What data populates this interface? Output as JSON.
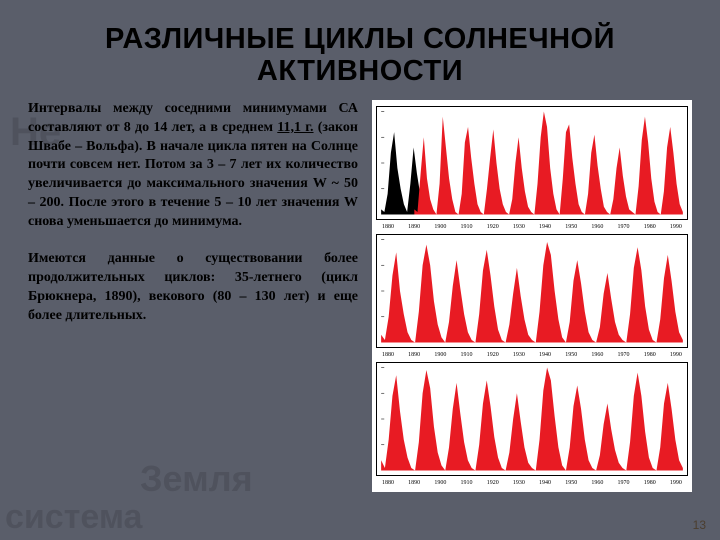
{
  "title": "РАЗЛИЧНЫЕ ЦИКЛЫ СОЛНЕЧНОЙ АКТИВНОСТИ",
  "para1_a": "Интервалы между соседними минимумами СА составляют от 8 до 14 лет, а в среднем ",
  "para1_u": "11,1 г.",
  "para1_b": " (закон Швабе – Вольфа). В начале цикла пятен на Солнце почти совсем нет. Потом за 3 – 7 лет их количество увеличивается до максимального значения W ~ 50 – 200. После этого в течение 5 – 10 лет значения W снова уменьшается до минимума.",
  "para2": "Имеются данные о существовании более продолжительных циклов: 35-летнего (цикл Брюкнера, 1890), векового (80 – 130 лет) и еще более длительных.",
  "page_num": "13",
  "bg_words": {
    "a": "Не",
    "b": "Земля",
    "c": "система"
  },
  "chart": {
    "background_color": "#ffffff",
    "axis_color": "#000000",
    "fill_red": "#e81b23",
    "fill_black": "#000000",
    "x_labels": [
      "1880",
      "1890",
      "1900",
      "1910",
      "1920",
      "1930",
      "1940",
      "1950",
      "1960",
      "1970",
      "1980",
      "1990"
    ],
    "ylim": [
      0,
      200
    ],
    "panels": [
      {
        "segments": [
          {
            "color": "black",
            "base": [
              0,
              0.14
            ],
            "values": [
              10,
              5,
              40,
              120,
              160,
              90,
              50,
              20,
              5,
              60,
              130,
              80,
              40,
              10
            ]
          },
          {
            "color": "red",
            "base": [
              0.11,
              1.0
            ],
            "values": [
              10,
              5,
              80,
              150,
              70,
              30,
              10,
              0,
              60,
              190,
              130,
              70,
              30,
              5,
              0,
              40,
              140,
              170,
              110,
              60,
              20,
              5,
              0,
              50,
              110,
              165,
              100,
              50,
              20,
              5,
              0,
              30,
              100,
              150,
              90,
              45,
              15,
              5,
              0,
              60,
              150,
              200,
              170,
              90,
              40,
              10,
              0,
              70,
              160,
              175,
              110,
              60,
              20,
              5,
              0,
              40,
              120,
              155,
              95,
              50,
              15,
              5,
              0,
              30,
              90,
              130,
              75,
              35,
              10,
              5,
              0,
              55,
              145,
              190,
              140,
              70,
              25,
              5,
              0,
              45,
              130,
              170,
              120,
              60,
              20,
              5
            ]
          }
        ]
      },
      {
        "segments": [
          {
            "color": "red",
            "base": [
              0,
              1.0
            ],
            "values": [
              15,
              5,
              50,
              130,
              175,
              100,
              55,
              20,
              5,
              0,
              60,
              150,
              190,
              150,
              80,
              35,
              10,
              0,
              40,
              110,
              160,
              105,
              55,
              20,
              5,
              0,
              55,
              140,
              180,
              130,
              70,
              25,
              5,
              0,
              35,
              95,
              145,
              90,
              45,
              15,
              5,
              0,
              60,
              150,
              195,
              170,
              100,
              45,
              10,
              0,
              40,
              120,
              160,
              115,
              60,
              20,
              5,
              0,
              30,
              95,
              135,
              85,
              40,
              15,
              5,
              0,
              55,
              145,
              185,
              140,
              70,
              25,
              5,
              0,
              45,
              125,
              170,
              120,
              60,
              20,
              5
            ]
          }
        ]
      },
      {
        "segments": [
          {
            "color": "red",
            "base": [
              0,
              1.0
            ],
            "values": [
              20,
              5,
              60,
              145,
              185,
              115,
              60,
              25,
              5,
              0,
              55,
              150,
              195,
              160,
              85,
              35,
              10,
              0,
              45,
              120,
              170,
              110,
              55,
              20,
              5,
              0,
              50,
              130,
              175,
              125,
              65,
              25,
              5,
              0,
              35,
              100,
              150,
              95,
              45,
              15,
              5,
              0,
              60,
              155,
              200,
              175,
              105,
              45,
              10,
              0,
              45,
              125,
              165,
              120,
              60,
              20,
              5,
              0,
              30,
              90,
              130,
              80,
              40,
              15,
              5,
              0,
              55,
              145,
              190,
              145,
              75,
              25,
              5,
              0,
              45,
              130,
              170,
              120,
              60,
              20,
              5
            ]
          }
        ]
      }
    ]
  }
}
